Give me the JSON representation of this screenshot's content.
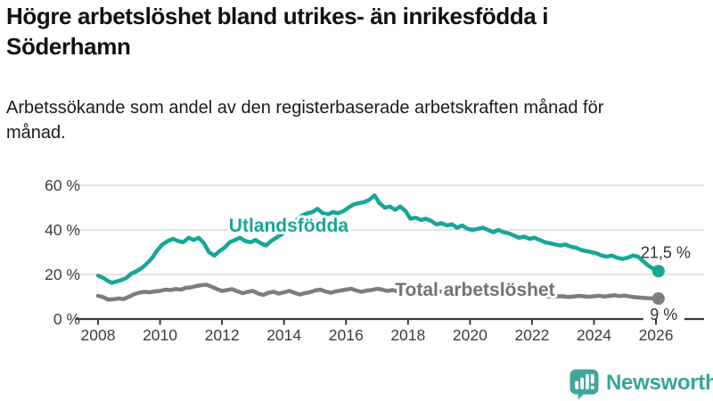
{
  "header": {
    "title": "Högre arbetslöshet bland utrikes- än inrikesfödda i Söderhamn",
    "subtitle": "Arbetssökande som andel av den registerbaserade arbetskraften månad för månad."
  },
  "chart_data": {
    "type": "line",
    "title": "Högre arbetslöshet bland utrikes- än inrikesfödda i Söderhamn",
    "subtitle": "Arbetssökande som andel av den registerbaserade arbetskraften månad för månad.",
    "unit": "%",
    "xlim": [
      2008,
      2026.2
    ],
    "ylim": [
      0,
      62
    ],
    "grid": "horizontal",
    "x_ticks": [
      2008,
      2010,
      2012,
      2014,
      2016,
      2018,
      2020,
      2022,
      2024,
      2026
    ],
    "y_ticks": [
      0,
      20,
      40,
      60
    ],
    "y_tick_labels": [
      "0 %",
      "20 %",
      "40 %",
      "60 %"
    ],
    "colors": {
      "accent_teal": "#16A699",
      "line_gray": "#7C7C82",
      "label_gray": "#72727A",
      "axis_text": "#3D3D3D",
      "gridline": "#DBDBDB",
      "axis_line": "#3A3A3A",
      "end_label_text": "#333333"
    },
    "series": [
      {
        "name": "Utlandsfödda",
        "color": "#16A699",
        "end_label": "21,5 %",
        "end_value": 21.5,
        "points": [
          [
            2008.0,
            19.5
          ],
          [
            2008.17,
            18.5
          ],
          [
            2008.33,
            17.0
          ],
          [
            2008.45,
            16.2
          ],
          [
            2008.58,
            16.8
          ],
          [
            2008.75,
            17.5
          ],
          [
            2008.92,
            18.5
          ],
          [
            2009.08,
            20.5
          ],
          [
            2009.25,
            21.5
          ],
          [
            2009.42,
            23.0
          ],
          [
            2009.58,
            25.0
          ],
          [
            2009.75,
            27.5
          ],
          [
            2009.92,
            31.0
          ],
          [
            2010.08,
            33.5
          ],
          [
            2010.25,
            35.0
          ],
          [
            2010.42,
            36.0
          ],
          [
            2010.58,
            35.0
          ],
          [
            2010.75,
            34.5
          ],
          [
            2010.92,
            36.5
          ],
          [
            2011.08,
            35.5
          ],
          [
            2011.25,
            36.5
          ],
          [
            2011.42,
            34.0
          ],
          [
            2011.58,
            30.0
          ],
          [
            2011.75,
            28.5
          ],
          [
            2011.92,
            30.5
          ],
          [
            2012.08,
            32.0
          ],
          [
            2012.25,
            34.5
          ],
          [
            2012.42,
            35.5
          ],
          [
            2012.58,
            36.5
          ],
          [
            2012.75,
            35.0
          ],
          [
            2012.92,
            34.5
          ],
          [
            2013.08,
            35.5
          ],
          [
            2013.25,
            34.0
          ],
          [
            2013.42,
            33.0
          ],
          [
            2013.58,
            35.0
          ],
          [
            2013.75,
            36.5
          ],
          [
            2013.92,
            38.0
          ],
          [
            2014.08,
            39.5
          ],
          [
            2014.25,
            42.0
          ],
          [
            2014.42,
            44.5
          ],
          [
            2014.58,
            46.5
          ],
          [
            2014.75,
            47.5
          ],
          [
            2014.92,
            48.0
          ],
          [
            2015.08,
            49.5
          ],
          [
            2015.25,
            47.5
          ],
          [
            2015.42,
            47.0
          ],
          [
            2015.58,
            48.0
          ],
          [
            2015.75,
            47.5
          ],
          [
            2015.92,
            48.5
          ],
          [
            2016.08,
            50.0
          ],
          [
            2016.25,
            51.5
          ],
          [
            2016.42,
            52.0
          ],
          [
            2016.58,
            52.5
          ],
          [
            2016.75,
            53.5
          ],
          [
            2016.92,
            55.5
          ],
          [
            2017.08,
            52.0
          ],
          [
            2017.25,
            50.0
          ],
          [
            2017.42,
            50.5
          ],
          [
            2017.58,
            49.0
          ],
          [
            2017.75,
            50.5
          ],
          [
            2017.92,
            48.5
          ],
          [
            2018.08,
            45.0
          ],
          [
            2018.25,
            45.5
          ],
          [
            2018.42,
            44.5
          ],
          [
            2018.58,
            45.0
          ],
          [
            2018.75,
            44.0
          ],
          [
            2018.92,
            42.5
          ],
          [
            2019.08,
            43.0
          ],
          [
            2019.25,
            42.0
          ],
          [
            2019.42,
            42.5
          ],
          [
            2019.58,
            41.0
          ],
          [
            2019.75,
            42.0
          ],
          [
            2019.92,
            40.5
          ],
          [
            2020.08,
            40.0
          ],
          [
            2020.25,
            40.5
          ],
          [
            2020.42,
            41.0
          ],
          [
            2020.58,
            40.0
          ],
          [
            2020.75,
            39.0
          ],
          [
            2020.92,
            40.0
          ],
          [
            2021.08,
            39.0
          ],
          [
            2021.25,
            38.5
          ],
          [
            2021.42,
            37.5
          ],
          [
            2021.58,
            36.5
          ],
          [
            2021.75,
            37.0
          ],
          [
            2021.92,
            36.0
          ],
          [
            2022.08,
            36.5
          ],
          [
            2022.25,
            35.5
          ],
          [
            2022.42,
            34.5
          ],
          [
            2022.58,
            34.0
          ],
          [
            2022.75,
            33.5
          ],
          [
            2022.92,
            33.0
          ],
          [
            2023.08,
            33.5
          ],
          [
            2023.25,
            32.5
          ],
          [
            2023.42,
            32.0
          ],
          [
            2023.58,
            31.0
          ],
          [
            2023.75,
            30.5
          ],
          [
            2023.92,
            30.0
          ],
          [
            2024.08,
            29.5
          ],
          [
            2024.25,
            28.5
          ],
          [
            2024.42,
            28.0
          ],
          [
            2024.58,
            28.5
          ],
          [
            2024.75,
            27.5
          ],
          [
            2024.92,
            27.0
          ],
          [
            2025.08,
            27.5
          ],
          [
            2025.25,
            28.5
          ],
          [
            2025.42,
            28.0
          ],
          [
            2025.58,
            26.0
          ],
          [
            2025.75,
            24.0
          ],
          [
            2025.92,
            22.5
          ],
          [
            2026.08,
            21.5
          ]
        ]
      },
      {
        "name": "Total arbetslöshet",
        "color": "#7C7C82",
        "end_label": "9 %",
        "end_value": 9.2,
        "points": [
          [
            2008.0,
            10.4
          ],
          [
            2008.17,
            9.8
          ],
          [
            2008.33,
            8.7
          ],
          [
            2008.5,
            8.9
          ],
          [
            2008.67,
            9.2
          ],
          [
            2008.83,
            9.0
          ],
          [
            2009.0,
            10.0
          ],
          [
            2009.17,
            11.2
          ],
          [
            2009.33,
            11.8
          ],
          [
            2009.5,
            12.2
          ],
          [
            2009.67,
            12.0
          ],
          [
            2009.83,
            12.4
          ],
          [
            2010.0,
            12.6
          ],
          [
            2010.17,
            13.2
          ],
          [
            2010.33,
            13.0
          ],
          [
            2010.5,
            13.5
          ],
          [
            2010.67,
            13.2
          ],
          [
            2010.83,
            14.0
          ],
          [
            2011.0,
            14.2
          ],
          [
            2011.17,
            14.8
          ],
          [
            2011.33,
            15.2
          ],
          [
            2011.5,
            15.4
          ],
          [
            2011.67,
            14.5
          ],
          [
            2011.83,
            13.5
          ],
          [
            2012.0,
            12.6
          ],
          [
            2012.17,
            13.0
          ],
          [
            2012.33,
            13.4
          ],
          [
            2012.5,
            12.4
          ],
          [
            2012.67,
            11.6
          ],
          [
            2012.83,
            12.2
          ],
          [
            2013.0,
            12.6
          ],
          [
            2013.17,
            11.4
          ],
          [
            2013.33,
            10.8
          ],
          [
            2013.5,
            11.8
          ],
          [
            2013.67,
            12.2
          ],
          [
            2013.83,
            11.4
          ],
          [
            2014.0,
            12.0
          ],
          [
            2014.17,
            12.6
          ],
          [
            2014.33,
            11.8
          ],
          [
            2014.5,
            11.0
          ],
          [
            2014.67,
            11.6
          ],
          [
            2014.83,
            12.0
          ],
          [
            2015.0,
            12.8
          ],
          [
            2015.17,
            13.2
          ],
          [
            2015.33,
            12.4
          ],
          [
            2015.5,
            11.8
          ],
          [
            2015.67,
            12.4
          ],
          [
            2015.83,
            12.8
          ],
          [
            2016.0,
            13.2
          ],
          [
            2016.17,
            13.6
          ],
          [
            2016.33,
            12.8
          ],
          [
            2016.5,
            12.2
          ],
          [
            2016.67,
            12.8
          ],
          [
            2016.83,
            13.0
          ],
          [
            2017.0,
            13.6
          ],
          [
            2017.17,
            13.2
          ],
          [
            2017.33,
            12.6
          ],
          [
            2017.5,
            13.0
          ],
          [
            2017.67,
            12.4
          ],
          [
            2017.83,
            12.8
          ],
          [
            2018.0,
            13.0
          ],
          [
            2018.17,
            12.4
          ],
          [
            2018.33,
            12.0
          ],
          [
            2018.5,
            12.6
          ],
          [
            2018.67,
            12.2
          ],
          [
            2018.83,
            12.6
          ],
          [
            2019.0,
            12.4
          ],
          [
            2019.17,
            12.0
          ],
          [
            2019.33,
            12.6
          ],
          [
            2019.5,
            11.8
          ],
          [
            2019.67,
            12.2
          ],
          [
            2019.83,
            11.6
          ],
          [
            2020.0,
            12.2
          ],
          [
            2020.17,
            13.0
          ],
          [
            2020.33,
            14.0
          ],
          [
            2020.5,
            13.6
          ],
          [
            2020.67,
            13.2
          ],
          [
            2020.83,
            13.4
          ],
          [
            2021.0,
            13.0
          ],
          [
            2021.17,
            12.6
          ],
          [
            2021.33,
            12.2
          ],
          [
            2021.5,
            11.8
          ],
          [
            2021.67,
            11.4
          ],
          [
            2021.83,
            11.2
          ],
          [
            2022.0,
            11.0
          ],
          [
            2022.17,
            10.8
          ],
          [
            2022.33,
            10.4
          ],
          [
            2022.5,
            10.2
          ],
          [
            2022.67,
            10.0
          ],
          [
            2022.83,
            10.2
          ],
          [
            2023.0,
            10.2
          ],
          [
            2023.17,
            9.9
          ],
          [
            2023.33,
            10.1
          ],
          [
            2023.5,
            10.4
          ],
          [
            2023.67,
            10.2
          ],
          [
            2023.83,
            10.0
          ],
          [
            2024.0,
            10.2
          ],
          [
            2024.17,
            10.5
          ],
          [
            2024.33,
            10.1
          ],
          [
            2024.5,
            10.4
          ],
          [
            2024.67,
            10.7
          ],
          [
            2024.83,
            10.3
          ],
          [
            2025.0,
            10.5
          ],
          [
            2025.17,
            10.1
          ],
          [
            2025.33,
            9.8
          ],
          [
            2025.5,
            9.6
          ],
          [
            2025.67,
            9.4
          ],
          [
            2025.83,
            9.3
          ],
          [
            2026.08,
            9.2
          ]
        ]
      }
    ],
    "annotations": [
      {
        "text": "Utlandsfödda",
        "x": 2014.15,
        "y": 42.0,
        "color": "#16A699"
      },
      {
        "text": "Total arbetslöshet",
        "x": 2020.16,
        "y": 13.2,
        "color": "#72727A"
      }
    ],
    "legend_position": "inline-labels"
  },
  "footer": {
    "brand": "Newsworthy",
    "logo_icon": "bar-chart-speech-bubble-icon",
    "brand_color": "#38a39a"
  }
}
